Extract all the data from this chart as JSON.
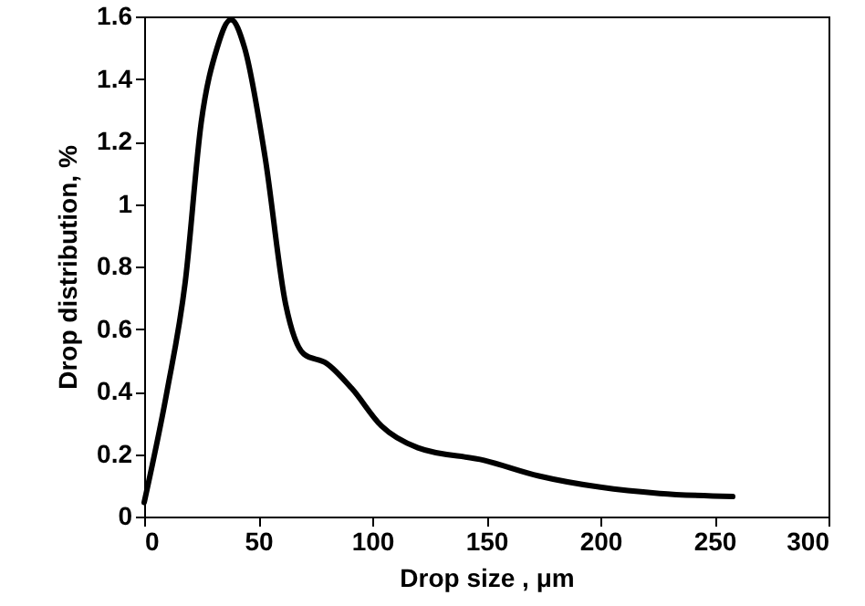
{
  "chart_data": {
    "type": "line",
    "xlabel": "Drop size , μm",
    "ylabel": "Drop distribution, %",
    "x": [
      0,
      10,
      18,
      25,
      32,
      38,
      44,
      53,
      62,
      70,
      80,
      91,
      104,
      120,
      149,
      173,
      200,
      226,
      258
    ],
    "series": [
      {
        "color": "#000000",
        "values": [
          0.045,
          0.4,
          0.75,
          1.26,
          1.5,
          1.59,
          1.5,
          1.15,
          0.68,
          0.52,
          0.49,
          0.41,
          0.29,
          0.22,
          0.18,
          0.13,
          0.094,
          0.074,
          0.064
        ]
      }
    ],
    "xlim": [
      0,
      300
    ],
    "xticks": [
      0,
      50,
      100,
      150,
      200,
      250,
      300
    ],
    "ylim": [
      0,
      1.6
    ],
    "yticks": [
      0,
      0.2,
      0.4,
      0.6,
      0.8,
      1,
      1.2,
      1.4,
      1.6
    ],
    "grid": false,
    "marker": "none",
    "line_style": "solid"
  }
}
